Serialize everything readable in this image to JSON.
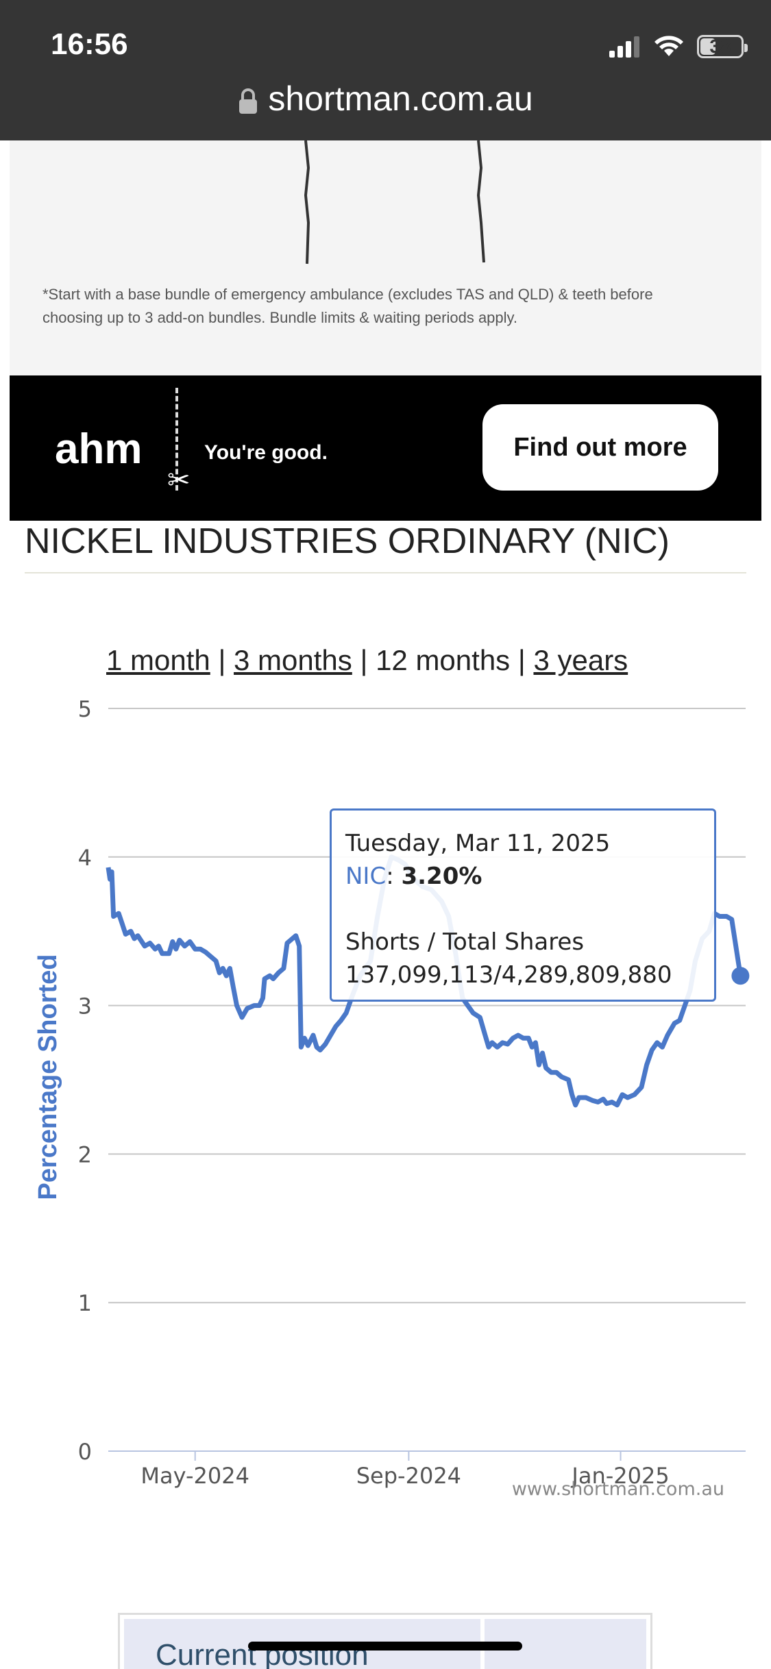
{
  "status_bar": {
    "time": "16:56",
    "battery": "38",
    "battery_level": 0.38
  },
  "url_bar": {
    "url": "shortman.com.au"
  },
  "ad": {
    "disclaimer": "*Start with a base bundle of emergency ambulance (excludes TAS and QLD) & teeth before choosing up to 3 add-on bundles. Bundle limits & waiting periods apply.",
    "brand": "ahm",
    "tagline": "You're good.",
    "cta": "Find out more"
  },
  "page": {
    "title": "NICKEL INDUSTRIES ORDINARY (NIC)"
  },
  "range_selector": {
    "options": [
      "1 month",
      "3 months",
      "12 months",
      "3 years"
    ],
    "separator": "|",
    "active": "12 months"
  },
  "tooltip": {
    "date": "Tuesday, Mar 11, 2025",
    "series": "NIC",
    "value": "3.20%",
    "label": "Shorts / Total Shares",
    "shares": "137,099,113/4,289,809,880"
  },
  "watermark": "www.shortman.com.au",
  "table": {
    "header": "Current position"
  },
  "chart_data": {
    "type": "line",
    "title": "",
    "xlabel": "",
    "ylabel": "Percentage Shorted",
    "ylim": [
      0,
      5
    ],
    "yticks": [
      "0",
      "1",
      "2",
      "3",
      "4",
      "5"
    ],
    "xticks": [
      {
        "label": "May-2024",
        "date": "2024-05-01"
      },
      {
        "label": "Sep-2024",
        "date": "2024-09-01"
      },
      {
        "label": "Jan-2025",
        "date": "2025-01-01"
      }
    ],
    "xlim": [
      "2024-03-12",
      "2025-03-14"
    ],
    "color": "#4a78c8",
    "series": [
      {
        "name": "NIC",
        "points": [
          [
            "2024-03-12",
            3.93
          ],
          [
            "2024-03-13",
            3.85
          ],
          [
            "2024-03-14",
            3.9
          ],
          [
            "2024-03-15",
            3.6
          ],
          [
            "2024-03-18",
            3.62
          ],
          [
            "2024-03-20",
            3.55
          ],
          [
            "2024-03-22",
            3.48
          ],
          [
            "2024-03-25",
            3.5
          ],
          [
            "2024-03-27",
            3.45
          ],
          [
            "2024-03-29",
            3.47
          ],
          [
            "2024-04-02",
            3.4
          ],
          [
            "2024-04-05",
            3.42
          ],
          [
            "2024-04-08",
            3.38
          ],
          [
            "2024-04-10",
            3.4
          ],
          [
            "2024-04-12",
            3.35
          ],
          [
            "2024-04-16",
            3.35
          ],
          [
            "2024-04-18",
            3.43
          ],
          [
            "2024-04-20",
            3.38
          ],
          [
            "2024-04-22",
            3.44
          ],
          [
            "2024-04-25",
            3.4
          ],
          [
            "2024-04-28",
            3.43
          ],
          [
            "2024-05-01",
            3.38
          ],
          [
            "2024-05-04",
            3.38
          ],
          [
            "2024-05-07",
            3.36
          ],
          [
            "2024-05-10",
            3.33
          ],
          [
            "2024-05-13",
            3.3
          ],
          [
            "2024-05-15",
            3.22
          ],
          [
            "2024-05-17",
            3.25
          ],
          [
            "2024-05-19",
            3.2
          ],
          [
            "2024-05-21",
            3.25
          ],
          [
            "2024-05-23",
            3.12
          ],
          [
            "2024-05-25",
            3.0
          ],
          [
            "2024-05-28",
            2.92
          ],
          [
            "2024-05-31",
            2.98
          ],
          [
            "2024-06-04",
            3.0
          ],
          [
            "2024-06-07",
            3.0
          ],
          [
            "2024-06-09",
            3.05
          ],
          [
            "2024-06-10",
            3.18
          ],
          [
            "2024-06-13",
            3.2
          ],
          [
            "2024-06-15",
            3.18
          ],
          [
            "2024-06-18",
            3.22
          ],
          [
            "2024-06-21",
            3.25
          ],
          [
            "2024-06-23",
            3.42
          ],
          [
            "2024-06-26",
            3.45
          ],
          [
            "2024-06-28",
            3.47
          ],
          [
            "2024-06-30",
            3.4
          ],
          [
            "2024-07-01",
            2.72
          ],
          [
            "2024-07-03",
            2.78
          ],
          [
            "2024-07-05",
            2.73
          ],
          [
            "2024-07-08",
            2.8
          ],
          [
            "2024-07-10",
            2.72
          ],
          [
            "2024-07-12",
            2.7
          ],
          [
            "2024-07-15",
            2.74
          ],
          [
            "2024-07-18",
            2.8
          ],
          [
            "2024-07-21",
            2.86
          ],
          [
            "2024-07-24",
            2.9
          ],
          [
            "2024-07-27",
            2.95
          ],
          [
            "2024-07-30",
            3.05
          ],
          [
            "2024-08-04",
            3.2
          ],
          [
            "2024-08-10",
            3.3
          ],
          [
            "2024-08-14",
            3.6
          ],
          [
            "2024-08-18",
            3.85
          ],
          [
            "2024-08-22",
            4.0
          ],
          [
            "2024-08-26",
            3.98
          ],
          [
            "2024-08-30",
            3.95
          ],
          [
            "2024-09-04",
            3.85
          ],
          [
            "2024-09-09",
            3.8
          ],
          [
            "2024-09-14",
            3.78
          ],
          [
            "2024-09-20",
            3.7
          ],
          [
            "2024-09-24",
            3.6
          ],
          [
            "2024-09-28",
            3.35
          ],
          [
            "2024-10-02",
            3.05
          ],
          [
            "2024-10-08",
            2.95
          ],
          [
            "2024-10-12",
            2.92
          ],
          [
            "2024-10-15",
            2.8
          ],
          [
            "2024-10-17",
            2.72
          ],
          [
            "2024-10-19",
            2.75
          ],
          [
            "2024-10-22",
            2.72
          ],
          [
            "2024-10-25",
            2.75
          ],
          [
            "2024-10-28",
            2.74
          ],
          [
            "2024-10-31",
            2.78
          ],
          [
            "2024-11-03",
            2.8
          ],
          [
            "2024-11-06",
            2.78
          ],
          [
            "2024-11-09",
            2.78
          ],
          [
            "2024-11-11",
            2.72
          ],
          [
            "2024-11-13",
            2.75
          ],
          [
            "2024-11-15",
            2.6
          ],
          [
            "2024-11-17",
            2.68
          ],
          [
            "2024-11-19",
            2.58
          ],
          [
            "2024-11-22",
            2.55
          ],
          [
            "2024-11-25",
            2.55
          ],
          [
            "2024-11-28",
            2.52
          ],
          [
            "2024-12-02",
            2.5
          ],
          [
            "2024-12-04",
            2.4
          ],
          [
            "2024-12-06",
            2.33
          ],
          [
            "2024-12-08",
            2.38
          ],
          [
            "2024-12-12",
            2.38
          ],
          [
            "2024-12-16",
            2.36
          ],
          [
            "2024-12-19",
            2.35
          ],
          [
            "2024-12-22",
            2.37
          ],
          [
            "2024-12-24",
            2.34
          ],
          [
            "2024-12-27",
            2.35
          ],
          [
            "2024-12-30",
            2.33
          ],
          [
            "2025-01-02",
            2.4
          ],
          [
            "2025-01-05",
            2.38
          ],
          [
            "2025-01-09",
            2.4
          ],
          [
            "2025-01-13",
            2.45
          ],
          [
            "2025-01-16",
            2.6
          ],
          [
            "2025-01-19",
            2.7
          ],
          [
            "2025-01-22",
            2.75
          ],
          [
            "2025-01-25",
            2.72
          ],
          [
            "2025-01-28",
            2.8
          ],
          [
            "2025-02-01",
            2.88
          ],
          [
            "2025-02-04",
            2.9
          ],
          [
            "2025-02-07",
            3.0
          ],
          [
            "2025-02-10",
            3.1
          ],
          [
            "2025-02-13",
            3.3
          ],
          [
            "2025-02-17",
            3.45
          ],
          [
            "2025-02-21",
            3.5
          ],
          [
            "2025-02-24",
            3.62
          ],
          [
            "2025-02-27",
            3.6
          ],
          [
            "2025-03-03",
            3.6
          ],
          [
            "2025-03-06",
            3.58
          ],
          [
            "2025-03-11",
            3.2
          ]
        ]
      }
    ],
    "highlight": {
      "date": "2025-03-11",
      "value": 3.2
    },
    "grid": true,
    "legend": "none"
  }
}
